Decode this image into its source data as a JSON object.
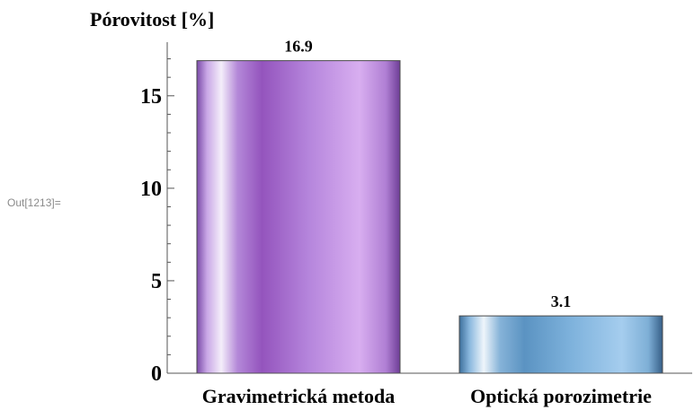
{
  "cell_label": "Out[1213]=",
  "chart_data": {
    "type": "bar",
    "title": "Pórovitost [%]",
    "xlabel": "",
    "ylabel": "",
    "categories": [
      "Gravimetrická metoda",
      "Optická porozimetrie"
    ],
    "values": [
      16.9,
      3.1
    ],
    "data_labels": [
      "16.9",
      "3.1"
    ],
    "ylim": [
      0,
      17.9
    ],
    "major_ticks": [
      0,
      5,
      10,
      15
    ],
    "minor_tick_step": 1,
    "grid": false,
    "colors": [
      "#a36ad0",
      "#5b9ad0"
    ]
  }
}
